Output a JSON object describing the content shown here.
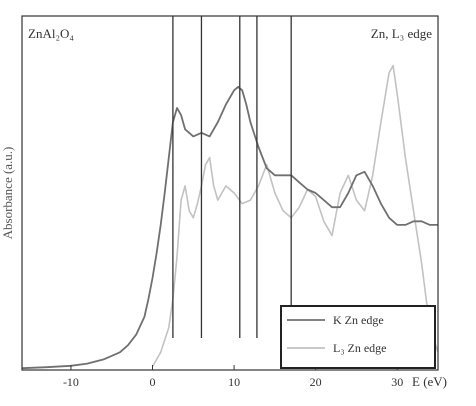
{
  "chart_data": {
    "type": "line",
    "title": "",
    "xlabel": "E (eV)",
    "ylabel": "Absorbance (a.u.)",
    "xlim": [
      -16,
      35
    ],
    "ylim": [
      0,
      1.0
    ],
    "x_ticks": [
      -10,
      0,
      10,
      20,
      30
    ],
    "x_tick_labels": [
      "-10",
      "0",
      "10",
      "20",
      "30"
    ],
    "grid": false,
    "annotations": {
      "sample": "ZnAl₂O₄",
      "edge": "Zn, L₃ edge"
    },
    "legend": {
      "placement": "bottom-right",
      "entries": [
        "K Zn edge",
        "L₃ Zn edge"
      ]
    },
    "vertical_lines": [
      2.5,
      6.0,
      10.7,
      12.8,
      17.0
    ],
    "series": [
      {
        "name": "K Zn edge",
        "color": "#707070",
        "x": [
          -16,
          -13,
          -10,
          -8,
          -6,
          -4,
          -3,
          -2,
          -1,
          -0.5,
          0,
          0.5,
          1,
          1.5,
          2,
          2.5,
          3,
          3.5,
          4,
          5,
          6,
          7,
          8,
          9,
          10,
          10.5,
          11,
          11.5,
          12,
          13,
          14,
          15,
          16,
          17,
          18,
          19,
          20,
          21,
          22,
          23,
          24,
          25,
          26,
          27,
          28,
          29,
          30,
          31,
          32,
          33,
          34,
          35
        ],
        "y": [
          0.005,
          0.008,
          0.012,
          0.018,
          0.03,
          0.05,
          0.07,
          0.1,
          0.15,
          0.2,
          0.26,
          0.33,
          0.41,
          0.5,
          0.6,
          0.7,
          0.74,
          0.72,
          0.68,
          0.66,
          0.67,
          0.66,
          0.7,
          0.75,
          0.79,
          0.8,
          0.79,
          0.75,
          0.7,
          0.63,
          0.57,
          0.55,
          0.55,
          0.55,
          0.53,
          0.51,
          0.5,
          0.48,
          0.46,
          0.46,
          0.5,
          0.55,
          0.56,
          0.52,
          0.47,
          0.43,
          0.41,
          0.41,
          0.42,
          0.42,
          0.41,
          0.41
        ]
      },
      {
        "name": "L₃ Zn edge",
        "color": "#c2c2c2",
        "x": [
          0,
          1,
          2,
          2.5,
          3,
          3.5,
          4,
          4.5,
          5,
          5.5,
          6,
          6.5,
          7,
          7.5,
          8,
          9,
          10,
          11,
          12,
          13,
          14,
          15,
          16,
          17,
          18,
          19,
          20,
          21,
          22,
          23,
          24,
          25,
          26,
          27,
          28,
          29,
          29.5,
          30,
          31,
          32,
          33,
          34,
          35
        ],
        "y": [
          0.01,
          0.05,
          0.12,
          0.2,
          0.32,
          0.48,
          0.52,
          0.45,
          0.43,
          0.47,
          0.52,
          0.58,
          0.6,
          0.52,
          0.48,
          0.52,
          0.5,
          0.47,
          0.48,
          0.52,
          0.58,
          0.5,
          0.45,
          0.43,
          0.46,
          0.51,
          0.49,
          0.42,
          0.38,
          0.5,
          0.55,
          0.48,
          0.45,
          0.55,
          0.7,
          0.84,
          0.86,
          0.78,
          0.6,
          0.45,
          0.3,
          0.12,
          0.05
        ]
      }
    ]
  }
}
